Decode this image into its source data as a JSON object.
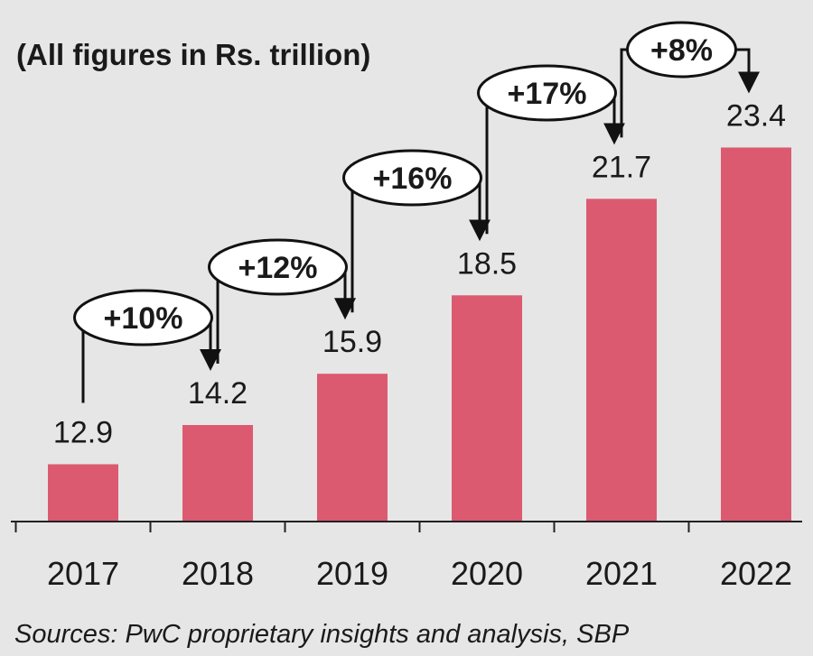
{
  "chart_data": {
    "type": "bar",
    "subtitle": "(All figures in Rs. trillion)",
    "categories": [
      "2017",
      "2018",
      "2019",
      "2020",
      "2021",
      "2022"
    ],
    "values": [
      12.9,
      14.2,
      15.9,
      18.5,
      21.7,
      23.4
    ],
    "value_labels": [
      "12.9",
      "14.2",
      "15.9",
      "18.5",
      "21.7",
      "23.4"
    ],
    "growth": [
      {
        "from": "2017",
        "to": "2018",
        "label": "+10%"
      },
      {
        "from": "2018",
        "to": "2019",
        "label": "+12%"
      },
      {
        "from": "2019",
        "to": "2020",
        "label": "+16%"
      },
      {
        "from": "2020",
        "to": "2021",
        "label": "+17%"
      },
      {
        "from": "2021",
        "to": "2022",
        "label": "+8%"
      }
    ],
    "source": "Sources: PwC proprietary insights and analysis, SBP",
    "ylim": [
      11,
      25
    ],
    "grid": false,
    "legend": "none",
    "colors": {
      "bar": "#dc5a70",
      "background": "#e6e6e6",
      "text": "#1a1a1a",
      "bubble_fill": "#ffffff",
      "bubble_stroke": "#111111"
    }
  }
}
